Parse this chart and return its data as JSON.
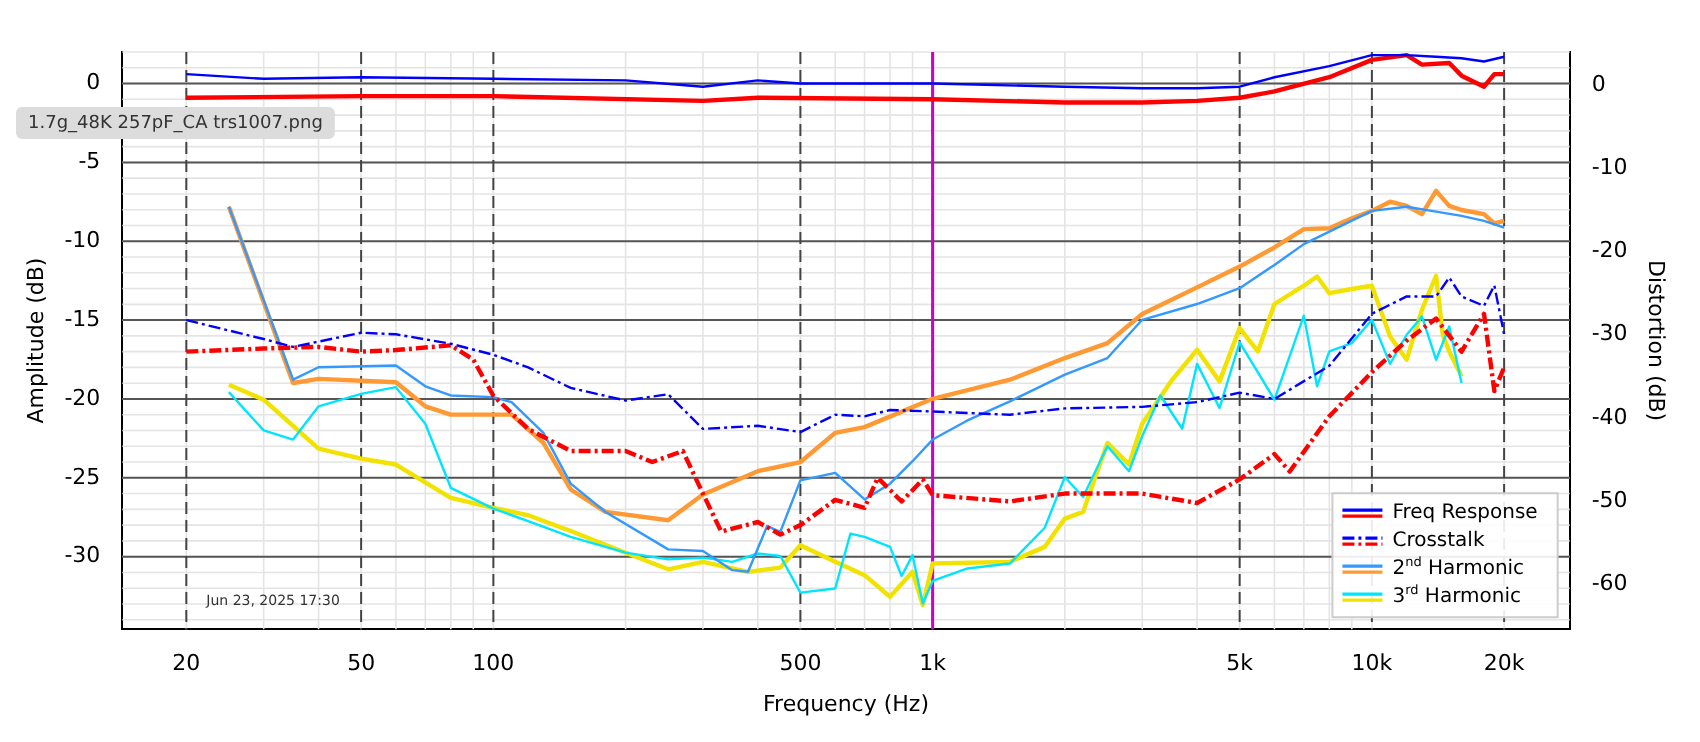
{
  "chart_data": {
    "type": "line",
    "xlabel": "Frequency (Hz)",
    "ylabel": "Amplitude (dB)",
    "y2label": "Distortion (dB)",
    "log": "x",
    "grid": true,
    "legend": "bottom right",
    "marker": "none",
    "xlim": [
      14.3,
      28200
    ],
    "xticks": [
      20,
      50,
      100,
      500,
      {
        "value": 1000,
        "label": "1k"
      },
      {
        "value": 5000,
        "label": "5k"
      },
      {
        "value": 10000,
        "label": "10k"
      },
      {
        "value": 20000,
        "label": "20k"
      }
    ],
    "ylim": [
      -34.6,
      2
    ],
    "yticks": [
      -30,
      -25,
      -20,
      -15,
      -10,
      -5,
      0
    ],
    "y2lim": [
      -65.4,
      4
    ],
    "y2ticks": [
      -60,
      -50,
      -40,
      -30,
      -20,
      -10,
      0
    ],
    "ref_lines": [
      {
        "axis": "x",
        "value": 1000,
        "color": "#cc00cc"
      }
    ],
    "annotations": [
      "1.7g_48K 257pF_CA trs1007.png",
      "Jun 23, 2025 17:30"
    ],
    "series": [
      {
        "name": "Freq Response",
        "color": "#0000ff",
        "line_style": "solid",
        "x": [
          20,
          30,
          50,
          100,
          200,
          300,
          400,
          500,
          1000,
          2000,
          3000,
          4000,
          5000,
          6000,
          8000,
          10000,
          12000,
          14000,
          16000,
          18000,
          20000
        ],
        "values": [
          0.6,
          0.3,
          0.4,
          0.3,
          0.2,
          -0.2,
          0.2,
          0,
          0,
          -0.2,
          -0.3,
          -0.3,
          -0.2,
          0.4,
          1.1,
          1.8,
          1.8,
          1.7,
          1.6,
          1.4,
          1.7
        ]
      },
      {
        "color": "#ff0000",
        "line_style": "solid",
        "x": [
          20,
          50,
          100,
          300,
          400,
          1000,
          2000,
          3000,
          4000,
          5000,
          6000,
          8000,
          10000,
          12000,
          13000,
          15000,
          16000,
          18000,
          19000,
          20000
        ],
        "values": [
          -0.9,
          -0.8,
          -0.8,
          -1.1,
          -0.9,
          -1,
          -1.2,
          -1.2,
          -1.1,
          -0.9,
          -0.5,
          0.4,
          1.5,
          1.8,
          1.2,
          1.3,
          0.5,
          -0.2,
          0.6,
          0.6
        ]
      },
      {
        "name": "Crosstalk",
        "color": "#0000ff",
        "line_style": "dashed",
        "x": [
          20,
          30,
          35,
          50,
          60,
          80,
          100,
          120,
          150,
          200,
          250,
          300,
          400,
          500,
          600,
          700,
          800,
          1000,
          1500,
          2000,
          3000,
          4000,
          5000,
          6000,
          8000,
          10000,
          12000,
          14000,
          15000,
          16000,
          18000,
          19000,
          20000
        ],
        "values": [
          -15,
          -16.2,
          -16.7,
          -15.8,
          -15.9,
          -16.5,
          -17.2,
          -18,
          -19.3,
          -20.1,
          -19.7,
          -21.9,
          -21.7,
          -22.1,
          -21,
          -21.1,
          -20.7,
          -20.8,
          -21,
          -20.6,
          -20.5,
          -20.2,
          -19.6,
          -20,
          -17.9,
          -14.6,
          -13.5,
          -13.5,
          -12.3,
          -13.5,
          -14.1,
          -12.8,
          -15.9
        ]
      },
      {
        "color": "#ff0000",
        "line_style": "dashed",
        "x": [
          20,
          30,
          40,
          50,
          60,
          80,
          90,
          100,
          120,
          150,
          200,
          230,
          270,
          300,
          330,
          400,
          450,
          500,
          600,
          700,
          750,
          850,
          950,
          1000,
          1500,
          2000,
          3000,
          4000,
          5000,
          6000,
          6500,
          8000,
          10000,
          12000,
          14000,
          16000,
          18000,
          19000,
          20000
        ],
        "values": [
          -17,
          -16.8,
          -16.7,
          -17,
          -16.9,
          -16.6,
          -17.5,
          -19.8,
          -21.9,
          -23.3,
          -23.3,
          -24,
          -23.3,
          -26,
          -28.4,
          -27.8,
          -28.6,
          -28,
          -26.4,
          -26.9,
          -25,
          -26.5,
          -25.1,
          -26.1,
          -26.5,
          -26,
          -26,
          -26.6,
          -25.1,
          -23.5,
          -24.6,
          -21.1,
          -18.3,
          -16.3,
          -14.9,
          -17,
          -14.6,
          -19.5,
          -18
        ]
      },
      {
        "name": "2$^{nd}$ Harmonic",
        "color": "#3399ff",
        "axis": "y2",
        "line_style": "solid",
        "x": [
          25,
          35,
          40,
          60,
          70,
          80,
          100,
          110,
          130,
          150,
          180,
          250,
          300,
          350,
          380,
          420,
          450,
          500,
          600,
          700,
          800,
          900,
          1000,
          1200,
          1500,
          2000,
          2500,
          3000,
          4000,
          5000,
          6000,
          7000,
          8000,
          10000,
          12000,
          14000,
          16000,
          18000,
          20000
        ],
        "values": [
          -14.6,
          -35.4,
          -33.9,
          -33.7,
          -36.2,
          -37.3,
          -37.5,
          -38.1,
          -41.8,
          -47.9,
          -51.3,
          -55.8,
          -56,
          -58.3,
          -58.5,
          -53,
          -53.7,
          -47.5,
          -46.6,
          -49.8,
          -47.9,
          -45.2,
          -42.6,
          -40.3,
          -38,
          -34.8,
          -32.8,
          -28.2,
          -26.3,
          -24.4,
          -21.6,
          -19.1,
          -17.6,
          -15.1,
          -14.6,
          -15.2,
          -15.7,
          -16.3,
          -17.1
        ]
      },
      {
        "color": "#ff9933",
        "axis": "y2",
        "line_style": "solid",
        "x": [
          25,
          35,
          40,
          60,
          70,
          80,
          110,
          130,
          150,
          180,
          250,
          300,
          400,
          500,
          600,
          700,
          1000,
          1500,
          2000,
          2500,
          3000,
          4000,
          5000,
          6000,
          7000,
          8000,
          9000,
          10000,
          11000,
          12000,
          13000,
          14000,
          15000,
          16000,
          18000,
          19000,
          20000
        ],
        "values": [
          -14.6,
          -35.8,
          -35.3,
          -35.7,
          -38.6,
          -39.6,
          -39.6,
          -43,
          -48.6,
          -51.3,
          -52.3,
          -49.2,
          -46.4,
          -45.3,
          -41.8,
          -41.1,
          -37.7,
          -35.4,
          -32.8,
          -31,
          -27.5,
          -24.3,
          -21.8,
          -19.5,
          -17.3,
          -17.2,
          -16,
          -15.1,
          -14,
          -14.5,
          -15.5,
          -12.7,
          -14.5,
          -15,
          -15.5,
          -16.6,
          -16.3
        ]
      },
      {
        "name": "3$^{rd}$ Harmonic",
        "color": "#00e5ff",
        "axis": "y2",
        "line_style": "solid",
        "x": [
          25,
          30,
          35,
          40,
          50,
          60,
          70,
          80,
          100,
          120,
          150,
          200,
          250,
          300,
          350,
          400,
          450,
          500,
          600,
          650,
          700,
          800,
          850,
          900,
          950,
          1000,
          1200,
          1500,
          1800,
          2000,
          2200,
          2500,
          2800,
          3000,
          3300,
          3700,
          4000,
          4500,
          5000,
          6000,
          7000,
          7500,
          8000,
          9000,
          10000,
          11000,
          12000,
          13000,
          14000,
          15000,
          16000
        ],
        "values": [
          -36.9,
          -41.5,
          -42.6,
          -38.6,
          -37.1,
          -36.3,
          -40.7,
          -48.4,
          -50.9,
          -52.4,
          -54.3,
          -56.2,
          -57,
          -56.8,
          -57.3,
          -56.3,
          -56.6,
          -61,
          -60.5,
          -53.9,
          -54.3,
          -55.5,
          -59,
          -56.5,
          -62.3,
          -59.6,
          -58.1,
          -57.5,
          -53.2,
          -47.1,
          -49.5,
          -43.4,
          -46.4,
          -42.2,
          -37.3,
          -41.3,
          -33.5,
          -38.8,
          -30.9,
          -37.8,
          -27.7,
          -36.2,
          -32,
          -31,
          -28.2,
          -33.5,
          -30,
          -27.8,
          -33,
          -29,
          -35.8
        ]
      },
      {
        "color": "#f2e200",
        "axis": "y2",
        "line_style": "solid",
        "x": [
          25,
          30,
          40,
          50,
          60,
          80,
          100,
          120,
          150,
          200,
          250,
          300,
          380,
          450,
          500,
          600,
          700,
          800,
          900,
          950,
          1000,
          1500,
          1800,
          2000,
          2200,
          2500,
          2800,
          3000,
          3500,
          4000,
          4500,
          5000,
          5500,
          6000,
          7000,
          7500,
          8000,
          9000,
          10000,
          11000,
          12000,
          13000,
          14000,
          14500,
          15000,
          16000
        ],
        "values": [
          -36,
          -37.8,
          -43.7,
          -44.9,
          -45.6,
          -49.6,
          -50.8,
          -51.7,
          -53.6,
          -56.2,
          -58.2,
          -57.3,
          -58.5,
          -58,
          -55.3,
          -57.3,
          -58.9,
          -61.5,
          -58.5,
          -62.5,
          -57.5,
          -57.3,
          -55.5,
          -52.1,
          -51.3,
          -43,
          -45.6,
          -40.7,
          -35.5,
          -31.8,
          -35.6,
          -29.2,
          -32,
          -26.3,
          -24.1,
          -23,
          -25,
          -24.5,
          -24.1,
          -30.2,
          -33,
          -27,
          -22.9,
          -30,
          -32,
          -35
        ]
      }
    ]
  }
}
